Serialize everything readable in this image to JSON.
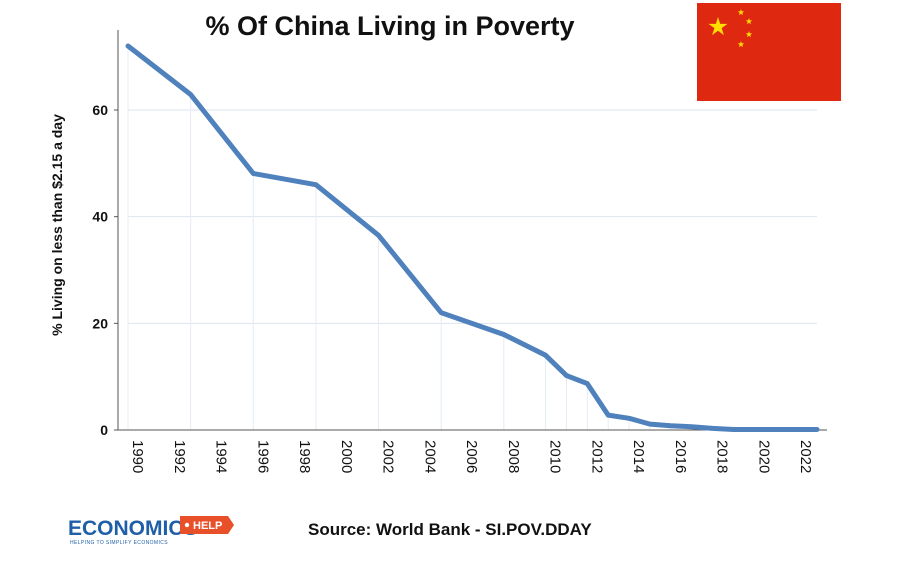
{
  "chart_data": {
    "type": "line",
    "title": "% Of China Living in Poverty",
    "xlabel": "",
    "ylabel": "% Living on less than $2.15 a day",
    "xlim": [
      1990,
      2023
    ],
    "ylim": [
      0,
      75
    ],
    "yticks": [
      0,
      20,
      40,
      60
    ],
    "xticks": [
      1990,
      1992,
      1994,
      1996,
      1998,
      2000,
      2002,
      2004,
      2006,
      2008,
      2010,
      2012,
      2014,
      2016,
      2018,
      2020,
      2022
    ],
    "grid": true,
    "legend": "none",
    "line_color": "#4f81bd",
    "series": [
      {
        "x": [
          1990,
          1993,
          1996,
          1999,
          2002,
          2005,
          2008,
          2010,
          2011,
          2012,
          2013,
          2014,
          2015,
          2016,
          2017,
          2018,
          2019,
          2020,
          2021,
          2022,
          2023
        ],
        "values": [
          72.0,
          62.9,
          48.1,
          46.0,
          36.5,
          22.0,
          17.9,
          14.0,
          10.2,
          8.7,
          2.8,
          2.2,
          1.1,
          0.8,
          0.6,
          0.3,
          0.1,
          0.1,
          0.1,
          0.1,
          0.1
        ]
      }
    ]
  },
  "source": "Source: World Bank - SI.POV.DDAY",
  "logo": {
    "main": "ECONOMICS",
    "badge": "HELP",
    "tagline": "HELPING TO SIMPLIFY ECONOMICS",
    "color": "#1f5fa8",
    "badge_color": "#e8502a"
  },
  "flag": {
    "icon": "china-flag-icon",
    "background": "#de2910",
    "star_color": "#ffde00"
  }
}
